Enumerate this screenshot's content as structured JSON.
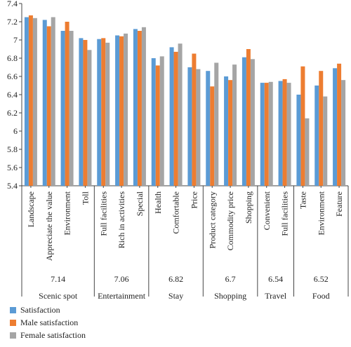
{
  "chart_data": {
    "type": "bar",
    "ylim": [
      5.4,
      7.4
    ],
    "yticks": [
      "5.4",
      "5.6",
      "5.8",
      "6",
      "6.2",
      "6.4",
      "6.6",
      "6.8",
      "7",
      "7.2",
      "7.4"
    ],
    "grid": false,
    "legend_position": "bottom-left",
    "series_colors": [
      "#5b9bd5",
      "#ed7d31",
      "#a5a5a5"
    ],
    "series": [
      {
        "name": "Satisfaction"
      },
      {
        "name": "Male satisfaction"
      },
      {
        "name": "Female satisfaction"
      }
    ],
    "groups": [
      {
        "name": "Scenic spot",
        "score": "7.14",
        "items": [
          {
            "label": "Landscape",
            "values": [
              7.25,
              7.27,
              7.24
            ]
          },
          {
            "label": "Appreciate the value",
            "values": [
              7.22,
              7.15,
              7.25
            ]
          },
          {
            "label": "Environment",
            "values": [
              7.1,
              7.2,
              7.1
            ]
          },
          {
            "label": "Toll",
            "values": [
              7.02,
              7.0,
              6.89
            ]
          }
        ]
      },
      {
        "name": "Entertainment",
        "score": "7.06",
        "items": [
          {
            "label": "Full facilities",
            "values": [
              7.01,
              7.02,
              6.97
            ]
          },
          {
            "label": "Rich in activities",
            "values": [
              7.05,
              7.04,
              7.07
            ]
          },
          {
            "label": "Special",
            "values": [
              7.12,
              7.1,
              7.14
            ]
          }
        ]
      },
      {
        "name": "Stay",
        "score": "6.82",
        "items": [
          {
            "label": "Health",
            "values": [
              6.8,
              6.72,
              6.82
            ]
          },
          {
            "label": "Comfortable",
            "values": [
              6.92,
              6.87,
              6.96
            ]
          },
          {
            "label": "Price",
            "values": [
              6.7,
              6.85,
              6.68
            ]
          }
        ]
      },
      {
        "name": "Shopping",
        "score": "6.7",
        "items": [
          {
            "label": "Product category",
            "values": [
              6.66,
              6.49,
              6.75
            ]
          },
          {
            "label": "Commodity price",
            "values": [
              6.6,
              6.56,
              6.73
            ]
          },
          {
            "label": "Shopping",
            "values": [
              6.81,
              6.9,
              6.79
            ]
          }
        ]
      },
      {
        "name": "Travel",
        "score": "6.54",
        "items": [
          {
            "label": "Convenient",
            "values": [
              6.53,
              6.53,
              6.54
            ]
          },
          {
            "label": "Full facilities",
            "values": [
              6.55,
              6.57,
              6.53
            ]
          }
        ]
      },
      {
        "name": "Food",
        "score": "6.52",
        "items": [
          {
            "label": "Taste",
            "values": [
              6.4,
              6.71,
              6.14
            ]
          },
          {
            "label": "Environment",
            "values": [
              6.5,
              6.66,
              6.38
            ]
          },
          {
            "label": "Feature",
            "values": [
              6.69,
              6.74,
              6.56
            ]
          }
        ]
      }
    ]
  }
}
